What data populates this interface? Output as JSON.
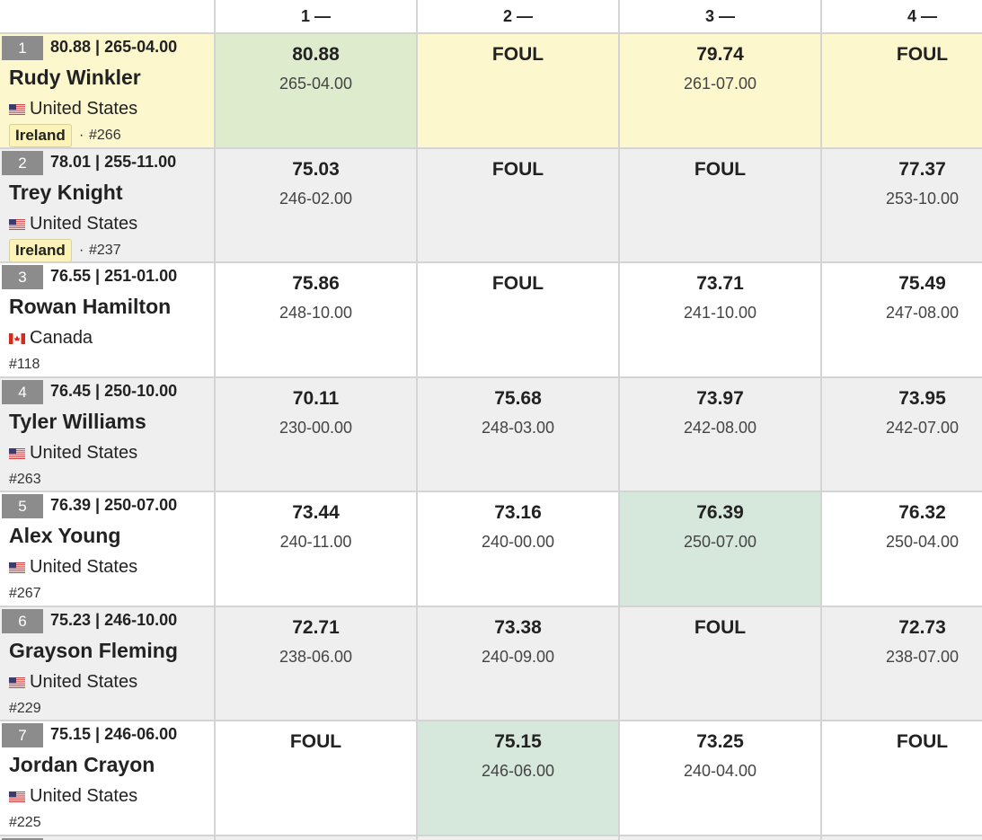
{
  "table": {
    "headers": [
      "1 —",
      "2 —",
      "3 —",
      "4 —"
    ],
    "rows": [
      {
        "rank": "1",
        "best": "80.88 | 265-04.00",
        "name": "Rudy Winkler",
        "country": "United States",
        "flag": "us",
        "team": "Ireland",
        "separator": "·",
        "bib": "#266",
        "attempts": [
          {
            "mark": "80.88",
            "imperial": "265-04.00"
          },
          {
            "mark": "FOUL"
          },
          {
            "mark": "79.74",
            "imperial": "261-07.00"
          },
          {
            "mark": "FOUL"
          }
        ]
      },
      {
        "rank": "2",
        "best": "78.01 | 255-11.00",
        "name": "Trey Knight",
        "country": "United States",
        "flag": "us",
        "team": "Ireland",
        "separator": "·",
        "bib": "#237",
        "attempts": [
          {
            "mark": "75.03",
            "imperial": "246-02.00"
          },
          {
            "mark": "FOUL"
          },
          {
            "mark": "FOUL"
          },
          {
            "mark": "77.37",
            "imperial": "253-10.00"
          }
        ]
      },
      {
        "rank": "3",
        "best": "76.55 | 251-01.00",
        "name": "Rowan Hamilton",
        "country": "Canada",
        "flag": "ca",
        "bib": "#118",
        "attempts": [
          {
            "mark": "75.86",
            "imperial": "248-10.00"
          },
          {
            "mark": "FOUL"
          },
          {
            "mark": "73.71",
            "imperial": "241-10.00"
          },
          {
            "mark": "75.49",
            "imperial": "247-08.00"
          }
        ]
      },
      {
        "rank": "4",
        "best": "76.45 | 250-10.00",
        "name": "Tyler Williams",
        "country": "United States",
        "flag": "us",
        "bib": "#263",
        "attempts": [
          {
            "mark": "70.11",
            "imperial": "230-00.00"
          },
          {
            "mark": "75.68",
            "imperial": "248-03.00"
          },
          {
            "mark": "73.97",
            "imperial": "242-08.00"
          },
          {
            "mark": "73.95",
            "imperial": "242-07.00"
          }
        ]
      },
      {
        "rank": "5",
        "best": "76.39 | 250-07.00",
        "name": "Alex Young",
        "country": "United States",
        "flag": "us",
        "bib": "#267",
        "attempts": [
          {
            "mark": "73.44",
            "imperial": "240-11.00"
          },
          {
            "mark": "73.16",
            "imperial": "240-00.00"
          },
          {
            "mark": "76.39",
            "imperial": "250-07.00"
          },
          {
            "mark": "76.32",
            "imperial": "250-04.00"
          }
        ]
      },
      {
        "rank": "6",
        "best": "75.23 | 246-10.00",
        "name": "Grayson Fleming",
        "country": "United States",
        "flag": "us",
        "bib": "#229",
        "attempts": [
          {
            "mark": "72.71",
            "imperial": "238-06.00"
          },
          {
            "mark": "73.38",
            "imperial": "240-09.00"
          },
          {
            "mark": "FOUL"
          },
          {
            "mark": "72.73",
            "imperial": "238-07.00"
          }
        ]
      },
      {
        "rank": "7",
        "best": "75.15 | 246-06.00",
        "name": "Jordan Crayon",
        "country": "United States",
        "flag": "us",
        "bib": "#225",
        "attempts": [
          {
            "mark": "FOUL"
          },
          {
            "mark": "75.15",
            "imperial": "246-06.00"
          },
          {
            "mark": "73.25",
            "imperial": "240-04.00"
          },
          {
            "mark": "FOUL"
          }
        ]
      }
    ]
  }
}
